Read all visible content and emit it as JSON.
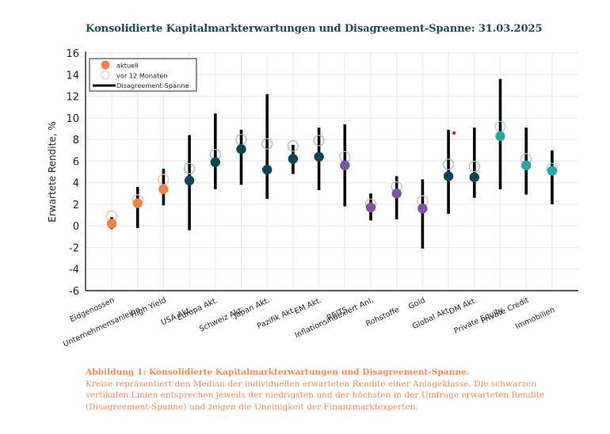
{
  "title": "Konsolidierte Kapitalmarkterwartungen und Disagreement-Spanne: 31.03.2025",
  "caption": {
    "title": "Abbildung 1: Konsolidierte Kapitalmarkterwartungen und Disagreement-Spanne.",
    "body": "Kreise repräsentiert den Median der individuellen erwarteten Rendite einer Anlageklasse. Die schwarzen vertikalen Linien entsprechen jeweils der niedrigsten und der höchsten in der Umfrage erwarteten Rendite (Disagreement-Spanne) und zeigen die Uneinigkeit der Finanzmarktexperten."
  },
  "chart_data": {
    "type": "scatter",
    "title": "Konsolidierte Kapitalmarkterwartungen und Disagreement-Spanne: 31.03.2025",
    "xlabel": "",
    "ylabel": "Erwartete Rendite, %",
    "ylim": [
      -6,
      16
    ],
    "yticks": [
      16,
      14,
      12,
      10,
      8,
      6,
      4,
      2,
      0,
      -2,
      -4,
      -6
    ],
    "grid": true,
    "legend": {
      "placement": "top-left",
      "entries": [
        {
          "label": "aktuell",
          "marker": "filled-circle"
        },
        {
          "label": "vor 12 Monaten",
          "marker": "open-circle"
        },
        {
          "label": "Disagreement-Spanne",
          "marker": "line"
        }
      ]
    },
    "categories": [
      "Eidgenossen",
      "Unternehmensanleihe",
      "High Yield",
      "USA Akt.",
      "Europa Akt.",
      "Schweiz Akt.",
      "Japan Akt.",
      "Pazifik Akt.",
      "EM Akt.",
      "REITS",
      "Inflationsindexiert Anl.",
      "Rohstoffe",
      "Gold",
      "Global Akt.",
      "DM Akt.",
      "Private Equity",
      "Private Credit",
      "Immobilien"
    ],
    "series": [
      {
        "name": "aktuell",
        "values": [
          0.2,
          2.1,
          3.4,
          4.2,
          5.9,
          7.1,
          5.2,
          6.2,
          6.4,
          5.6,
          1.7,
          3.0,
          1.6,
          4.6,
          4.5,
          8.3,
          5.6,
          5.1
        ]
      },
      {
        "name": "vor 12 Monaten",
        "values": [
          0.9,
          2.4,
          4.3,
          5.3,
          6.6,
          8.0,
          7.6,
          7.4,
          7.9,
          6.4,
          2.0,
          3.6,
          2.3,
          5.7,
          5.5,
          9.2,
          6.2,
          5.3
        ]
      },
      {
        "name": "Disagreement-Spanne min",
        "values": [
          -0.3,
          -0.2,
          1.9,
          -0.4,
          3.4,
          3.8,
          2.5,
          4.8,
          3.3,
          1.8,
          0.5,
          0.6,
          -2.1,
          1.1,
          2.6,
          3.4,
          2.9,
          2.0
        ]
      },
      {
        "name": "Disagreement-Spanne max",
        "values": [
          0.8,
          3.6,
          5.3,
          8.4,
          10.4,
          8.9,
          12.2,
          7.5,
          9.1,
          9.4,
          3.0,
          4.6,
          4.3,
          8.9,
          9.1,
          13.6,
          9.1,
          7.0
        ]
      }
    ],
    "category_groups": [
      "bond",
      "bond",
      "bond",
      "equity",
      "equity",
      "equity",
      "equity",
      "equity",
      "equity",
      "real",
      "real",
      "real",
      "real",
      "equity",
      "equity",
      "alt",
      "alt",
      "alt"
    ],
    "group_colors": {
      "bond": "#f07f4c",
      "equity": "#0b4452",
      "real": "#7b55a0",
      "alt": "#2ea3a3"
    },
    "previous_colors": {
      "bond": "#f4b9a0",
      "equity": "#9cbcc4",
      "real": "#c6b2dc",
      "alt": "#98d4d4"
    },
    "annotations": [
      {
        "category": "Global Akt.",
        "value": 8.6,
        "marker": "red-dot",
        "color": "#e0201c"
      }
    ]
  }
}
